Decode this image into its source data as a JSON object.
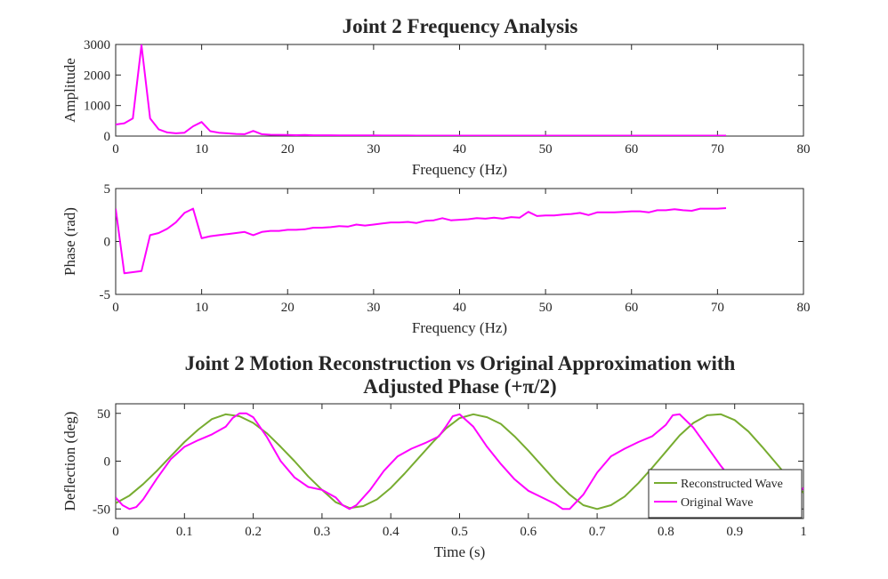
{
  "figure_title": "Joint 2 Frequency Analysis",
  "chart_data": [
    {
      "type": "line",
      "title": "",
      "xlabel": "Frequency (Hz)",
      "ylabel": "Amplitude",
      "xlim": [
        0,
        80
      ],
      "ylim": [
        0,
        3000
      ],
      "xticks": [
        0,
        10,
        20,
        30,
        40,
        50,
        60,
        70,
        80
      ],
      "yticks": [
        0,
        1000,
        2000,
        3000
      ],
      "grid": false,
      "series": [
        {
          "color": "#ff00ff",
          "x": [
            0,
            1,
            2,
            3,
            4,
            5,
            6,
            7,
            8,
            9,
            10,
            11,
            12,
            13,
            14,
            15,
            16,
            17,
            18,
            19,
            20,
            21,
            22,
            23,
            24,
            25,
            26,
            27,
            28,
            29,
            30,
            31,
            32,
            33,
            34,
            35,
            36,
            37,
            38,
            39,
            40,
            41,
            42,
            43,
            44,
            45,
            46,
            47,
            48,
            49,
            50,
            51,
            52,
            53,
            54,
            55,
            56,
            57,
            58,
            59,
            60,
            61,
            62,
            63,
            64,
            65,
            66,
            67,
            68,
            69,
            70,
            71
          ],
          "y": [
            380,
            420,
            580,
            2980,
            580,
            220,
            120,
            90,
            110,
            320,
            460,
            160,
            110,
            90,
            70,
            60,
            170,
            60,
            45,
            40,
            35,
            30,
            35,
            25,
            25,
            25,
            20,
            20,
            20,
            20,
            20,
            18,
            18,
            18,
            18,
            15,
            15,
            15,
            15,
            15,
            15,
            15,
            15,
            15,
            15,
            15,
            15,
            15,
            15,
            15,
            15,
            15,
            15,
            15,
            15,
            15,
            15,
            15,
            15,
            15,
            15,
            15,
            15,
            15,
            15,
            15,
            15,
            15,
            15,
            15,
            15,
            15
          ]
        }
      ]
    },
    {
      "type": "line",
      "title": "",
      "xlabel": "Frequency (Hz)",
      "ylabel": "Phase (rad)",
      "xlim": [
        0,
        80
      ],
      "ylim": [
        -5,
        5
      ],
      "xticks": [
        0,
        10,
        20,
        30,
        40,
        50,
        60,
        70,
        80
      ],
      "yticks": [
        -5,
        0,
        5
      ],
      "grid": false,
      "series": [
        {
          "color": "#ff00ff",
          "x": [
            0,
            1,
            2,
            3,
            4,
            5,
            6,
            7,
            8,
            9,
            10,
            11,
            12,
            13,
            14,
            15,
            16,
            17,
            18,
            19,
            20,
            21,
            22,
            23,
            24,
            25,
            26,
            27,
            28,
            29,
            30,
            31,
            32,
            33,
            34,
            35,
            36,
            37,
            38,
            39,
            40,
            41,
            42,
            43,
            44,
            45,
            46,
            47,
            48,
            49,
            50,
            51,
            52,
            53,
            54,
            55,
            56,
            57,
            58,
            59,
            60,
            61,
            62,
            63,
            64,
            65,
            66,
            67,
            68,
            69,
            70,
            71
          ],
          "y": [
            3.1,
            -3.0,
            -2.9,
            -2.8,
            0.6,
            0.8,
            1.2,
            1.8,
            2.7,
            3.1,
            0.3,
            0.5,
            0.6,
            0.7,
            0.8,
            0.9,
            0.6,
            0.9,
            1.0,
            1.0,
            1.1,
            1.1,
            1.15,
            1.3,
            1.3,
            1.35,
            1.45,
            1.4,
            1.6,
            1.5,
            1.6,
            1.7,
            1.8,
            1.8,
            1.85,
            1.75,
            1.95,
            2.0,
            2.2,
            2.0,
            2.05,
            2.1,
            2.2,
            2.15,
            2.25,
            2.15,
            2.3,
            2.25,
            2.8,
            2.4,
            2.45,
            2.45,
            2.55,
            2.6,
            2.7,
            2.5,
            2.75,
            2.75,
            2.75,
            2.8,
            2.85,
            2.85,
            2.75,
            2.95,
            2.95,
            3.05,
            2.95,
            2.9,
            3.1,
            3.1,
            3.1,
            3.15
          ]
        }
      ]
    },
    {
      "type": "line",
      "title": "Joint 2 Motion Reconstruction vs Original Approximation with",
      "subtitle": "Adjusted Phase (+π/2)",
      "xlabel": "Time (s)",
      "ylabel": "Deflection (deg)",
      "xlim": [
        0,
        1
      ],
      "ylim": [
        -60,
        60
      ],
      "xticks": [
        "0",
        "0.1",
        "0.2",
        "0.3",
        "0.4",
        "0.5",
        "0.6",
        "0.7",
        "0.8",
        "0.9",
        "1"
      ],
      "yticks": [
        -50,
        0,
        50
      ],
      "grid": false,
      "legend": "bottom-right",
      "series": [
        {
          "name": "Reconstructed Wave",
          "color": "#77ac30",
          "x": [
            0,
            0.02,
            0.04,
            0.06,
            0.08,
            0.1,
            0.12,
            0.14,
            0.16,
            0.18,
            0.2,
            0.22,
            0.24,
            0.26,
            0.28,
            0.3,
            0.32,
            0.34,
            0.36,
            0.38,
            0.4,
            0.42,
            0.44,
            0.46,
            0.48,
            0.5,
            0.52,
            0.54,
            0.56,
            0.58,
            0.6,
            0.62,
            0.64,
            0.66,
            0.68,
            0.7,
            0.72,
            0.74,
            0.76,
            0.78,
            0.8,
            0.82,
            0.84,
            0.86,
            0.88,
            0.9,
            0.92,
            0.94,
            0.96,
            0.98,
            1.0
          ],
          "y": [
            -44,
            -36,
            -24,
            -10,
            5,
            20,
            33,
            44,
            49,
            47,
            40,
            29,
            15,
            0,
            -16,
            -30,
            -43,
            -49,
            -47,
            -40,
            -28,
            -13,
            3,
            19,
            34,
            45,
            49,
            46,
            39,
            26,
            11,
            -5,
            -21,
            -35,
            -46,
            -50,
            -46,
            -37,
            -23,
            -7,
            10,
            27,
            40,
            48,
            49,
            43,
            31,
            15,
            -2,
            -19,
            -33
          ]
        },
        {
          "name": "Original Wave",
          "color": "#ff00ff",
          "x": [
            0,
            0.01,
            0.02,
            0.03,
            0.04,
            0.06,
            0.08,
            0.1,
            0.12,
            0.14,
            0.16,
            0.17,
            0.18,
            0.19,
            0.2,
            0.22,
            0.24,
            0.26,
            0.28,
            0.3,
            0.32,
            0.33,
            0.34,
            0.35,
            0.37,
            0.39,
            0.41,
            0.43,
            0.45,
            0.47,
            0.48,
            0.49,
            0.5,
            0.52,
            0.54,
            0.56,
            0.58,
            0.6,
            0.62,
            0.64,
            0.65,
            0.66,
            0.68,
            0.7,
            0.72,
            0.74,
            0.76,
            0.78,
            0.8,
            0.81,
            0.82,
            0.84,
            0.86,
            0.88,
            0.9,
            0.92,
            0.94,
            0.96,
            0.97,
            0.98,
            1.0
          ],
          "y": [
            -38,
            -46,
            -50,
            -48,
            -40,
            -18,
            2,
            15,
            22,
            28,
            36,
            45,
            50,
            50,
            46,
            25,
            0,
            -17,
            -27,
            -30,
            -38,
            -46,
            -50,
            -46,
            -30,
            -10,
            5,
            13,
            19,
            26,
            36,
            47,
            49,
            36,
            15,
            -3,
            -19,
            -31,
            -38,
            -45,
            -50,
            -50,
            -35,
            -12,
            5,
            13,
            20,
            26,
            38,
            48,
            49,
            35,
            15,
            -5,
            -23,
            -38,
            -48,
            -51,
            -48,
            -42,
            -28
          ]
        }
      ]
    }
  ]
}
